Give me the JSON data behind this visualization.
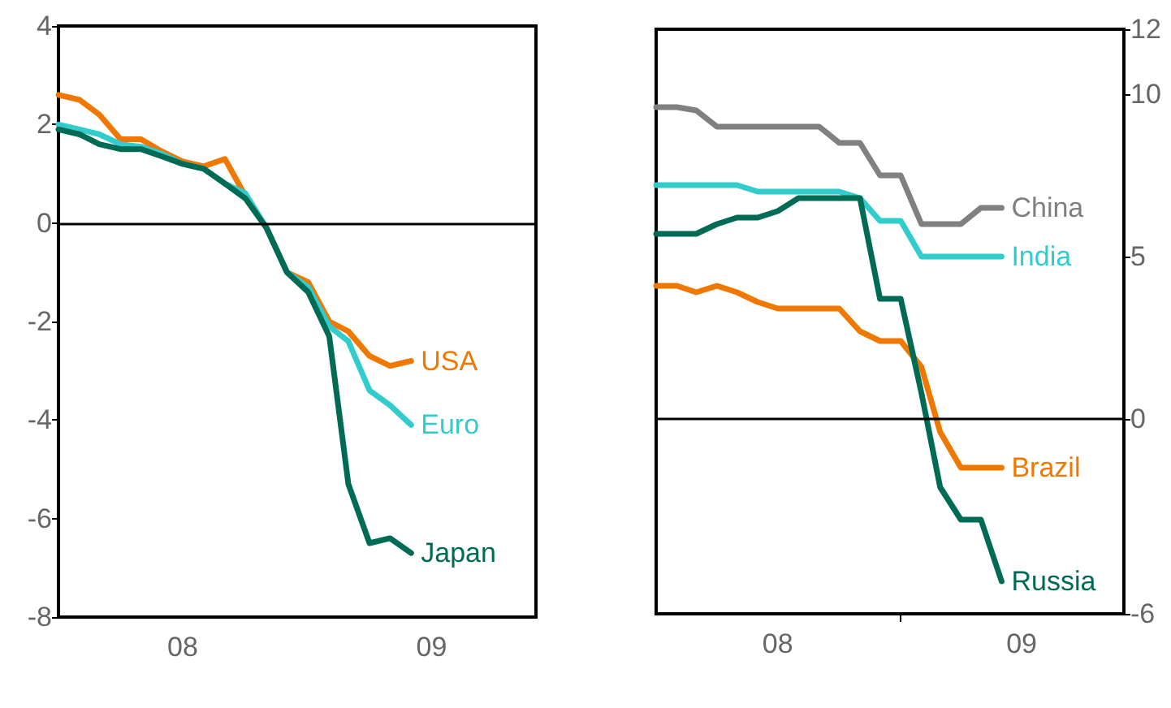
{
  "chart_data": [
    {
      "type": "line",
      "x": [
        "2008-01",
        "2008-02",
        "2008-03",
        "2008-04",
        "2008-05",
        "2008-06",
        "2008-07",
        "2008-08",
        "2008-09",
        "2008-10",
        "2008-11",
        "2008-12",
        "2009-01",
        "2009-02",
        "2009-03",
        "2009-04",
        "2009-05",
        "2009-06"
      ],
      "series": [
        {
          "name": "USA",
          "color": "#f07800",
          "values": [
            2.6,
            2.5,
            2.2,
            1.7,
            1.7,
            1.45,
            1.25,
            1.15,
            1.3,
            0.55,
            -0.1,
            -1.0,
            -1.2,
            -2.0,
            -2.2,
            -2.7,
            -2.9,
            -2.8
          ]
        },
        {
          "name": "Euro",
          "color": "#33cccc",
          "values": [
            2.0,
            1.9,
            1.8,
            1.6,
            1.55,
            1.4,
            1.2,
            1.1,
            0.8,
            0.6,
            -0.1,
            -1.0,
            -1.3,
            -2.1,
            -2.4,
            -3.4,
            -3.7,
            -4.1
          ]
        },
        {
          "name": "Japan",
          "color": "#006b54",
          "values": [
            1.9,
            1.8,
            1.6,
            1.5,
            1.5,
            1.35,
            1.2,
            1.1,
            0.8,
            0.5,
            -0.1,
            -1.0,
            -1.4,
            -2.3,
            -5.3,
            -6.5,
            -6.4,
            -6.7
          ]
        }
      ],
      "xlim": [
        "2008-01",
        "2009-12"
      ],
      "xticks": [
        {
          "value": "2008-07",
          "label": "08"
        },
        {
          "value": "2009-07",
          "label": "09"
        }
      ],
      "ylim": [
        -8,
        4
      ],
      "yticks": [
        -8,
        -6,
        -4,
        -2,
        0,
        2,
        4
      ],
      "ref_lines": [
        {
          "axis": "y",
          "value": 0
        }
      ],
      "legend": false,
      "grid": false
    },
    {
      "type": "line",
      "x": [
        "2008-01",
        "2008-02",
        "2008-03",
        "2008-04",
        "2008-05",
        "2008-06",
        "2008-07",
        "2008-08",
        "2008-09",
        "2008-10",
        "2008-11",
        "2008-12",
        "2009-01",
        "2009-02",
        "2009-03",
        "2009-04",
        "2009-05",
        "2009-06"
      ],
      "series": [
        {
          "name": "China",
          "color": "#808080",
          "axis": "y2",
          "values": [
            9.6,
            9.6,
            9.5,
            9.0,
            9.0,
            9.0,
            9.0,
            9.0,
            9.0,
            8.5,
            8.5,
            7.5,
            7.5,
            6.0,
            6.0,
            6.0,
            6.5,
            6.5
          ]
        },
        {
          "name": "India",
          "color": "#33cccc",
          "axis": "y2",
          "values": [
            7.2,
            7.2,
            7.2,
            7.2,
            7.2,
            7.0,
            7.0,
            7.0,
            7.0,
            7.0,
            6.8,
            6.1,
            6.1,
            5.0,
            5.0,
            5.0,
            5.0,
            5.0
          ]
        },
        {
          "name": "Brazil",
          "color": "#f07800",
          "axis": "y2",
          "values": [
            4.1,
            4.1,
            3.9,
            4.1,
            3.9,
            3.6,
            3.4,
            3.4,
            3.4,
            3.4,
            2.7,
            2.4,
            2.4,
            1.6,
            -0.4,
            -1.5,
            -1.5,
            -1.5
          ]
        },
        {
          "name": "Russia",
          "color": "#006b54",
          "axis": "y2",
          "values": [
            5.7,
            5.7,
            5.7,
            6.0,
            6.2,
            6.2,
            6.4,
            6.8,
            6.8,
            6.8,
            6.8,
            3.7,
            3.7,
            0.8,
            -2.1,
            -3.1,
            -3.1,
            -5.0
          ]
        }
      ],
      "xlim": [
        "2008-01",
        "2009-12"
      ],
      "xticks": [
        {
          "value": "2008-07",
          "label": "08"
        },
        {
          "value": "2009-01",
          "label": null
        },
        {
          "value": "2009-07",
          "label": "09"
        }
      ],
      "y2lim": [
        -6,
        12
      ],
      "y2ticks": [
        -6,
        0,
        5,
        10,
        12
      ],
      "ref_lines": [
        {
          "axis": "y2",
          "value": 0
        }
      ],
      "legend": false,
      "grid": false
    }
  ]
}
